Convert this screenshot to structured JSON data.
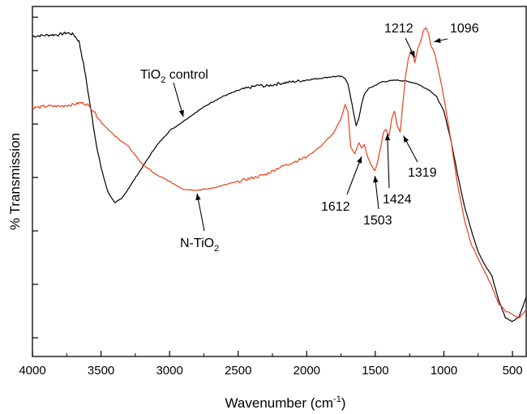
{
  "chart_data": {
    "type": "line",
    "title": "",
    "xlabel": "Wavenumber (cm",
    "xlabel_sup": "-1",
    "xlabel_tail": ")",
    "ylabel": "% Transmission",
    "xlim": [
      4000,
      400
    ],
    "ylim": [
      0,
      1
    ],
    "x_ticks": [
      4000,
      3500,
      3000,
      2500,
      2000,
      1500,
      1000,
      500
    ],
    "x_tick_labels": [
      "4000",
      "3500",
      "3000",
      "2500",
      "2000",
      "1500",
      "1000",
      "500"
    ],
    "y_ticks_shown_without_labels": true,
    "grid": false,
    "colors": {
      "tio2_control": "#000000",
      "n_tio2": "#e8401c"
    },
    "series": [
      {
        "name": "TiO2 control",
        "label_main": "TiO",
        "label_sub": "2",
        "label_tail": " control",
        "color": "#000000",
        "x": [
          4000,
          3900,
          3800,
          3750,
          3700,
          3660,
          3620,
          3580,
          3540,
          3500,
          3450,
          3400,
          3350,
          3300,
          3200,
          3100,
          3000,
          2900,
          2800,
          2700,
          2600,
          2500,
          2400,
          2350,
          2300,
          2200,
          2100,
          2000,
          1900,
          1800,
          1750,
          1720,
          1700,
          1680,
          1660,
          1640,
          1620,
          1600,
          1580,
          1550,
          1500,
          1450,
          1400,
          1350,
          1300,
          1250,
          1200,
          1150,
          1100,
          1050,
          1000,
          950,
          900,
          850,
          800,
          750,
          700,
          650,
          600,
          550,
          500,
          450,
          400
        ],
        "y": [
          0.915,
          0.918,
          0.92,
          0.925,
          0.92,
          0.9,
          0.82,
          0.72,
          0.62,
          0.54,
          0.47,
          0.44,
          0.45,
          0.48,
          0.54,
          0.6,
          0.645,
          0.672,
          0.7,
          0.725,
          0.745,
          0.76,
          0.77,
          0.775,
          0.772,
          0.78,
          0.785,
          0.79,
          0.795,
          0.8,
          0.8,
          0.795,
          0.78,
          0.74,
          0.7,
          0.66,
          0.68,
          0.72,
          0.75,
          0.765,
          0.775,
          0.785,
          0.787,
          0.79,
          0.788,
          0.785,
          0.78,
          0.77,
          0.76,
          0.74,
          0.7,
          0.62,
          0.52,
          0.43,
          0.36,
          0.3,
          0.26,
          0.23,
          0.16,
          0.11,
          0.1,
          0.115,
          0.17
        ]
      },
      {
        "name": "N-TiO2",
        "label_main": "N-TiO",
        "label_sub": "2",
        "label_tail": "",
        "color": "#e8401c",
        "x": [
          4000,
          3900,
          3800,
          3700,
          3650,
          3600,
          3550,
          3500,
          3400,
          3300,
          3200,
          3100,
          3000,
          2900,
          2800,
          2700,
          2600,
          2500,
          2400,
          2300,
          2200,
          2100,
          2000,
          1900,
          1800,
          1750,
          1720,
          1700,
          1680,
          1650,
          1620,
          1600,
          1580,
          1560,
          1540,
          1520,
          1503,
          1480,
          1460,
          1440,
          1424,
          1400,
          1380,
          1360,
          1340,
          1319,
          1300,
          1280,
          1260,
          1240,
          1225,
          1212,
          1190,
          1170,
          1150,
          1130,
          1110,
          1096,
          1070,
          1040,
          1000,
          950,
          900,
          850,
          800,
          750,
          700,
          650,
          600,
          550,
          500,
          450,
          400
        ],
        "y": [
          0.71,
          0.715,
          0.715,
          0.72,
          0.725,
          0.72,
          0.7,
          0.67,
          0.63,
          0.6,
          0.55,
          0.52,
          0.5,
          0.478,
          0.475,
          0.48,
          0.49,
          0.5,
          0.51,
          0.52,
          0.54,
          0.555,
          0.57,
          0.6,
          0.64,
          0.68,
          0.72,
          0.7,
          0.6,
          0.58,
          0.61,
          0.595,
          0.605,
          0.575,
          0.555,
          0.54,
          0.53,
          0.56,
          0.6,
          0.64,
          0.65,
          0.63,
          0.68,
          0.7,
          0.66,
          0.64,
          0.72,
          0.8,
          0.85,
          0.875,
          0.86,
          0.84,
          0.88,
          0.9,
          0.93,
          0.94,
          0.92,
          0.89,
          0.87,
          0.82,
          0.74,
          0.62,
          0.49,
          0.39,
          0.32,
          0.28,
          0.24,
          0.2,
          0.15,
          0.13,
          0.12,
          0.11,
          0.135
        ]
      }
    ],
    "annotations": [
      {
        "id": "1612",
        "text": "1612",
        "x": 1612,
        "y": 0.59
      },
      {
        "id": "1503",
        "text": "1503",
        "x": 1503,
        "y": 0.53
      },
      {
        "id": "1424",
        "text": "1424",
        "x": 1424,
        "y": 0.65
      },
      {
        "id": "1319",
        "text": "1319",
        "x": 1319,
        "y": 0.64
      },
      {
        "id": "1212",
        "text": "1212",
        "x": 1212,
        "y": 0.84
      },
      {
        "id": "1096",
        "text": "1096",
        "x": 1096,
        "y": 0.89
      }
    ]
  }
}
